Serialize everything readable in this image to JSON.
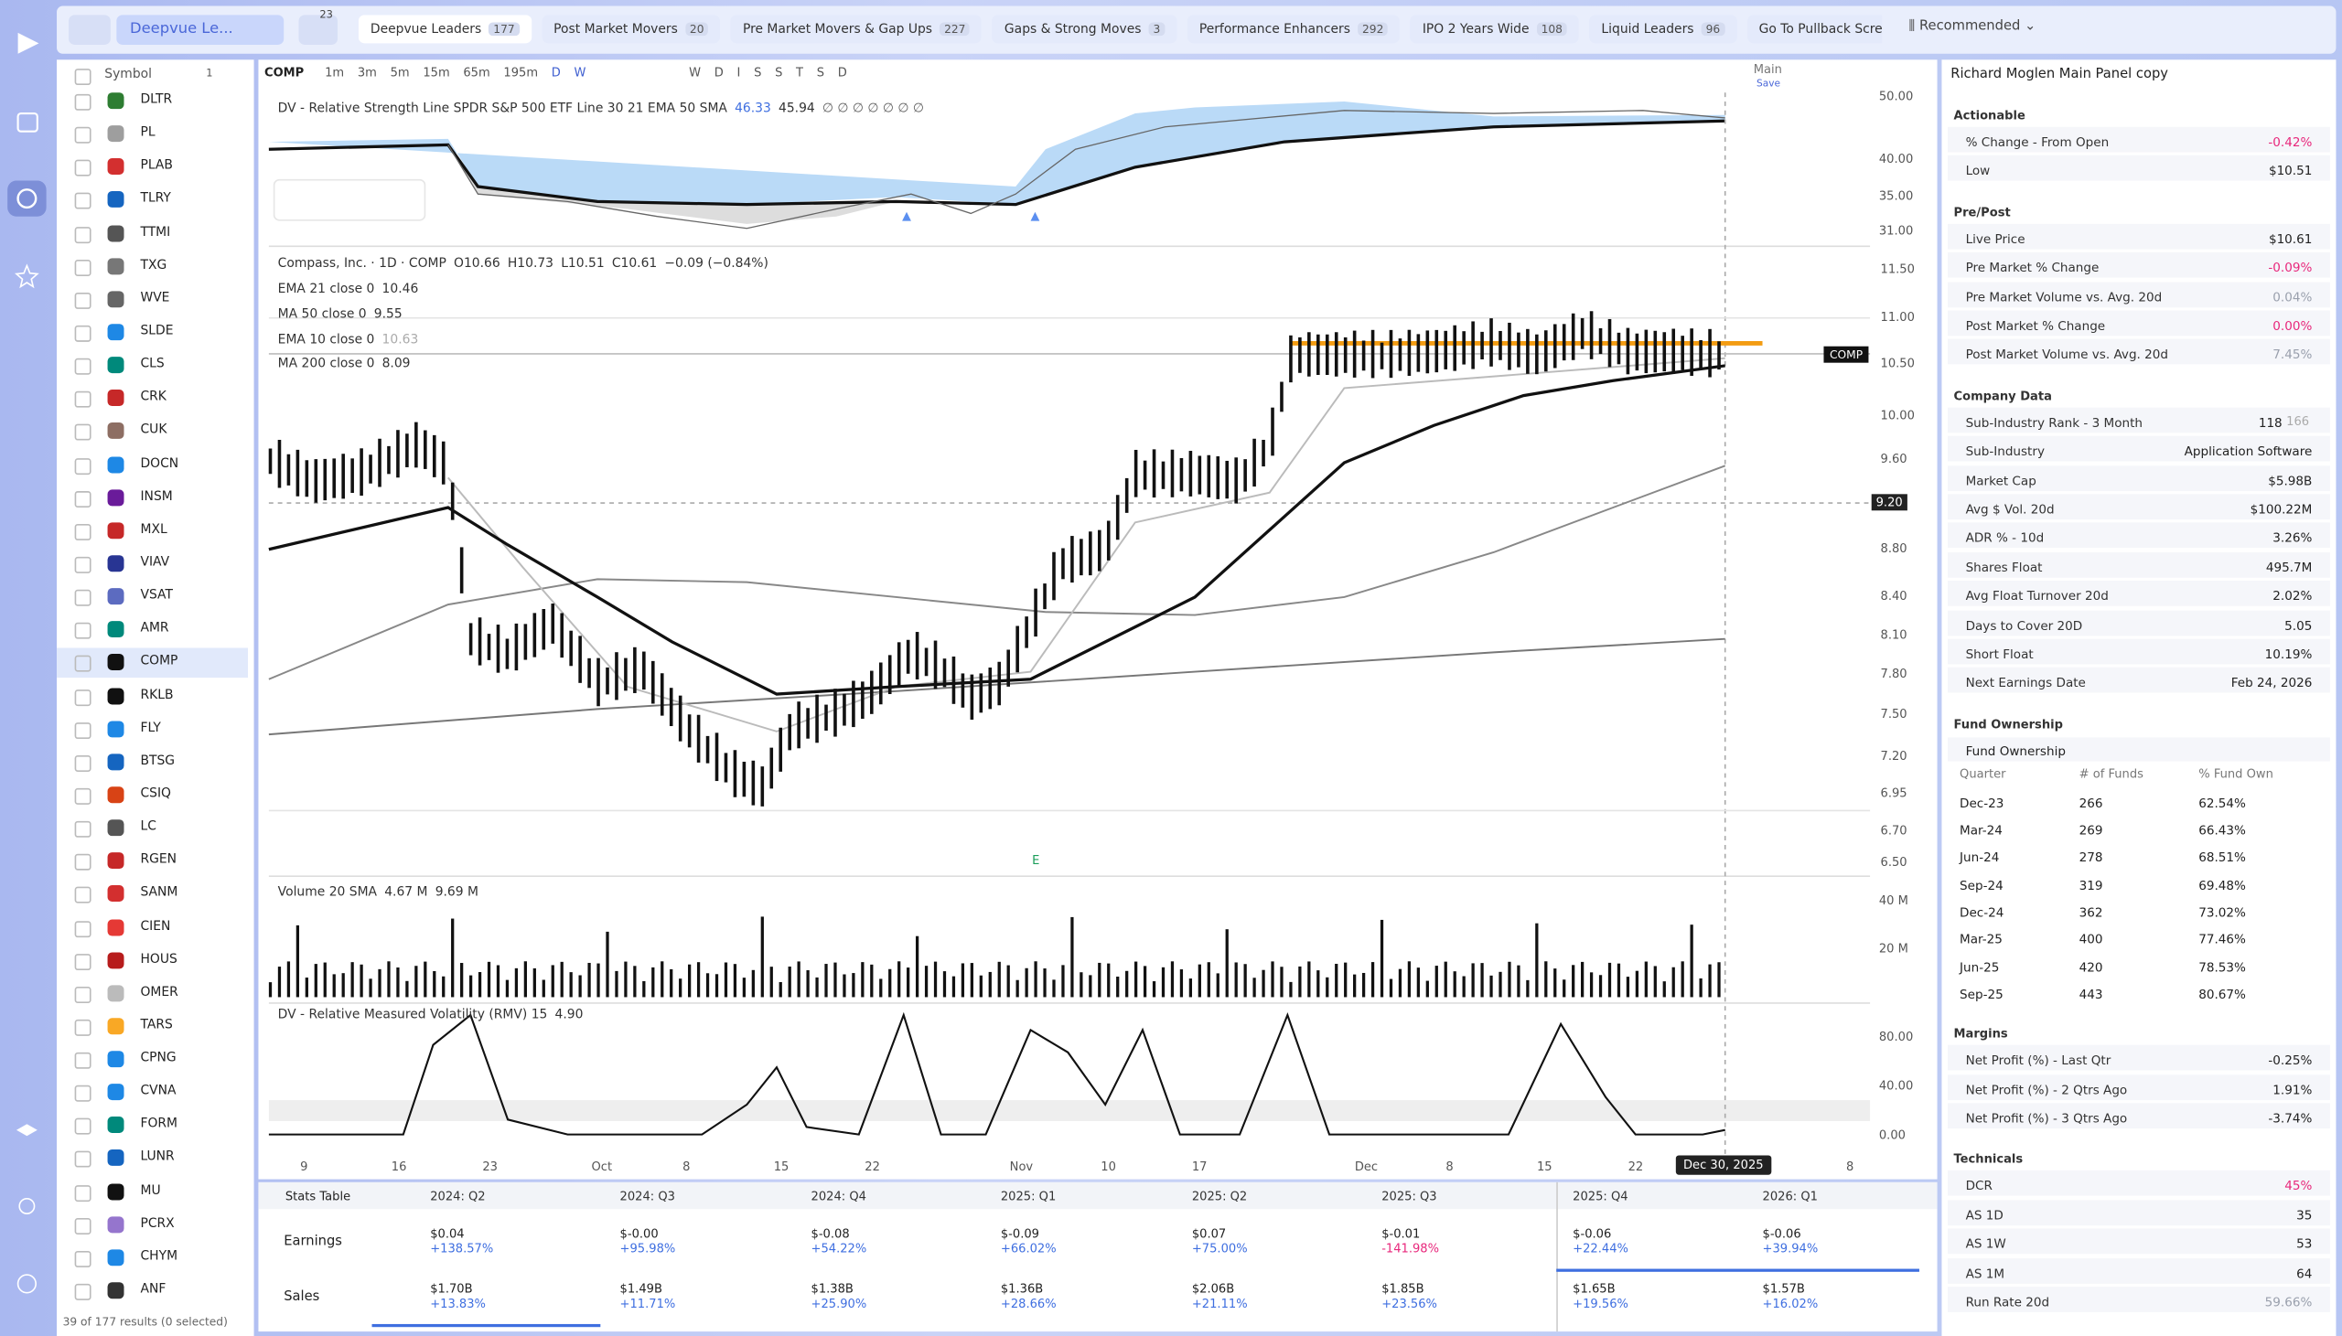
{
  "topbar": {
    "list_selector": "Deepvue Le...",
    "filter_badge": "23",
    "tabs": [
      {
        "label": "Deepvue Leaders",
        "count": "177"
      },
      {
        "label": "Post Market Movers",
        "count": "20"
      },
      {
        "label": "Pre Market Movers & Gap Ups",
        "count": "227"
      },
      {
        "label": "Gaps & Strong Moves",
        "count": "3"
      },
      {
        "label": "Performance Enhancers",
        "count": "292"
      },
      {
        "label": "IPO 2 Years Wide",
        "count": "108"
      },
      {
        "label": "Liquid Leaders",
        "count": "96"
      },
      {
        "label": "Go To Pullback Scre"
      }
    ],
    "sort": "Recommended"
  },
  "watchlist": {
    "header": "Symbol",
    "header_count": "1",
    "symbols": [
      "DLTR",
      "PL",
      "PLAB",
      "TLRY",
      "TTMI",
      "TXG",
      "WVE",
      "SLDE",
      "CLS",
      "CRK",
      "CUK",
      "DOCN",
      "INSM",
      "MXL",
      "VIAV",
      "VSAT",
      "AMR",
      "COMP",
      "RKLB",
      "FLY",
      "BTSG",
      "CSIQ",
      "LC",
      "RGEN",
      "SANM",
      "CIEN",
      "HOUS",
      "OMER",
      "TARS",
      "CPNG",
      "CVNA",
      "FORM",
      "LUNR",
      "MU",
      "PCRX",
      "CHYM",
      "ANF"
    ],
    "selected": "COMP",
    "footer": "39 of 177 results (0 selected)"
  },
  "toolbar": {
    "symbol": "COMP",
    "intervals": [
      "1m",
      "3m",
      "5m",
      "15m",
      "65m",
      "195m",
      "D",
      "W"
    ],
    "studies": [
      "W",
      "D",
      "I",
      "S",
      "S",
      "T",
      "S",
      "D"
    ],
    "layout": "Main",
    "layout_sub": "Save"
  },
  "chart": {
    "rs": {
      "legend": "DV - Relative Strength Line SPDR S&P 500 ETF Line 30 21 EMA 50 SMA",
      "v1": "46.33",
      "v2": "45.94",
      "flags": "∅ ∅ ∅ ∅ ∅ ∅ ∅",
      "axis": [
        "50.00",
        "40.00",
        "35.00",
        "31.00"
      ]
    },
    "price": {
      "title": "Compass, Inc. · 1D · COMP",
      "open": "O10.66",
      "high": "H10.73",
      "low": "L10.51",
      "close": "C10.61",
      "change": "−0.09 (−0.84%)",
      "indicators": [
        {
          "name": "EMA 21 close 0",
          "value": "10.46"
        },
        {
          "name": "MA 50 close 0",
          "value": "9.55"
        },
        {
          "name": "EMA 10 close 0",
          "value": "10.63"
        },
        {
          "name": "MA 200 close 0",
          "value": "8.09"
        }
      ],
      "axis": [
        "11.50",
        "11.00",
        "10.50",
        "10.00",
        "9.60",
        "9.20",
        "8.80",
        "8.40",
        "8.10",
        "7.80",
        "7.50",
        "7.20",
        "6.95",
        "6.70",
        "6.50"
      ],
      "symbol_tag": "COMP",
      "earnings_marker": "E"
    },
    "volume": {
      "legend": "Volume 20 SMA",
      "v1": "4.67 M",
      "v2": "9.69 M",
      "axis": [
        "40 M",
        "20 M"
      ]
    },
    "rmv": {
      "legend": "DV - Relative Measured Volatility (RMV) 15",
      "value": "4.90",
      "axis": [
        "80.00",
        "40.00",
        "0.00"
      ]
    },
    "x_axis": [
      "9",
      "16",
      "23",
      "Oct",
      "8",
      "15",
      "22",
      "Nov",
      "10",
      "17",
      "Dec",
      "8",
      "15",
      "22",
      "8"
    ],
    "crosshair_date": "Dec 30, 2025"
  },
  "stats_table": {
    "title": "Stats Table",
    "quarters": [
      "2024: Q2",
      "2024: Q3",
      "2024: Q4",
      "2025: Q1",
      "2025: Q2",
      "2025: Q3",
      "2025: Q4",
      "2026: Q1"
    ],
    "rows": [
      {
        "label": "Earnings",
        "cells": [
          {
            "value": "$0.04",
            "change": "+138.57%"
          },
          {
            "value": "$-0.00",
            "change": "+95.98%"
          },
          {
            "value": "$-0.08",
            "change": "+54.22%"
          },
          {
            "value": "$-0.09",
            "change": "+66.02%"
          },
          {
            "value": "$0.07",
            "change": "+75.00%"
          },
          {
            "value": "$-0.01",
            "change": "-141.98%"
          },
          {
            "value": "$-0.06",
            "change": "+22.44%"
          },
          {
            "value": "$-0.06",
            "change": "+39.94%"
          }
        ]
      },
      {
        "label": "Sales",
        "cells": [
          {
            "value": "$1.70B",
            "change": "+13.83%"
          },
          {
            "value": "$1.49B",
            "change": "+11.71%"
          },
          {
            "value": "$1.38B",
            "change": "+25.90%"
          },
          {
            "value": "$1.36B",
            "change": "+28.66%"
          },
          {
            "value": "$2.06B",
            "change": "+21.11%"
          },
          {
            "value": "$1.85B",
            "change": "+23.56%"
          },
          {
            "value": "$1.65B",
            "change": "+19.56%"
          },
          {
            "value": "$1.57B",
            "change": "+16.02%"
          }
        ]
      }
    ]
  },
  "panel": {
    "title": "Richard Moglen Main Panel copy",
    "sections": [
      {
        "title": "Actionable",
        "rows": [
          {
            "label": "% Change - From Open",
            "value": "-0.42%",
            "color": "#e8287c"
          },
          {
            "label": "Low",
            "value": "$10.51"
          }
        ]
      },
      {
        "title": "Pre/Post",
        "rows": [
          {
            "label": "Live Price",
            "value": "$10.61"
          },
          {
            "label": "Pre Market % Change",
            "value": "-0.09%",
            "color": "#e8287c"
          },
          {
            "label": "Pre Market Volume vs. Avg. 20d",
            "value": "0.04%",
            "color": "#9aa0ad"
          },
          {
            "label": "Post Market % Change",
            "value": "0.00%",
            "color": "#e8287c"
          },
          {
            "label": "Post Market Volume vs. Avg. 20d",
            "value": "7.45%",
            "color": "#9aa0ad"
          }
        ]
      },
      {
        "title": "Company Data",
        "rows": [
          {
            "label": "Sub-Industry Rank - 3 Month",
            "value": "118",
            "extra": "166"
          },
          {
            "label": "Sub-Industry",
            "value": "Application Software"
          },
          {
            "label": "Market Cap",
            "value": "$5.98B"
          },
          {
            "label": "Avg $ Vol. 20d",
            "value": "$100.22M"
          },
          {
            "label": "ADR % - 10d",
            "value": "3.26%"
          },
          {
            "label": "Shares Float",
            "value": "495.7M"
          },
          {
            "label": "Avg Float Turnover 20d",
            "value": "2.02%"
          },
          {
            "label": "Days to Cover 20D",
            "value": "5.05"
          },
          {
            "label": "Short Float",
            "value": "10.19%"
          },
          {
            "label": "Next Earnings Date",
            "value": "Feb 24, 2026"
          }
        ]
      },
      {
        "title": "Fund Ownership",
        "subtitle": "Fund Ownership",
        "columns": [
          "Quarter",
          "# of Funds",
          "% Fund Own"
        ],
        "table": [
          [
            "Dec-23",
            "266",
            "62.54%"
          ],
          [
            "Mar-24",
            "269",
            "66.43%"
          ],
          [
            "Jun-24",
            "278",
            "68.51%"
          ],
          [
            "Sep-24",
            "319",
            "69.48%"
          ],
          [
            "Dec-24",
            "362",
            "73.02%"
          ],
          [
            "Mar-25",
            "400",
            "77.46%"
          ],
          [
            "Jun-25",
            "420",
            "78.53%"
          ],
          [
            "Sep-25",
            "443",
            "80.67%"
          ]
        ]
      },
      {
        "title": "Margins",
        "rows": [
          {
            "label": "Net Profit (%) - Last Qtr",
            "value": "-0.25%"
          },
          {
            "label": "Net Profit (%) - 2 Qtrs Ago",
            "value": "1.91%"
          },
          {
            "label": "Net Profit (%) - 3 Qtrs Ago",
            "value": "-3.74%"
          }
        ]
      },
      {
        "title": "Technicals",
        "rows": [
          {
            "label": "DCR",
            "value": "45%",
            "color": "#e8287c"
          },
          {
            "label": "AS 1D",
            "value": "35"
          },
          {
            "label": "AS 1W",
            "value": "53"
          },
          {
            "label": "AS 1M",
            "value": "64"
          },
          {
            "label": "Run Rate 20d",
            "value": "59.66%",
            "color": "#9aa0ad"
          }
        ]
      }
    ]
  }
}
